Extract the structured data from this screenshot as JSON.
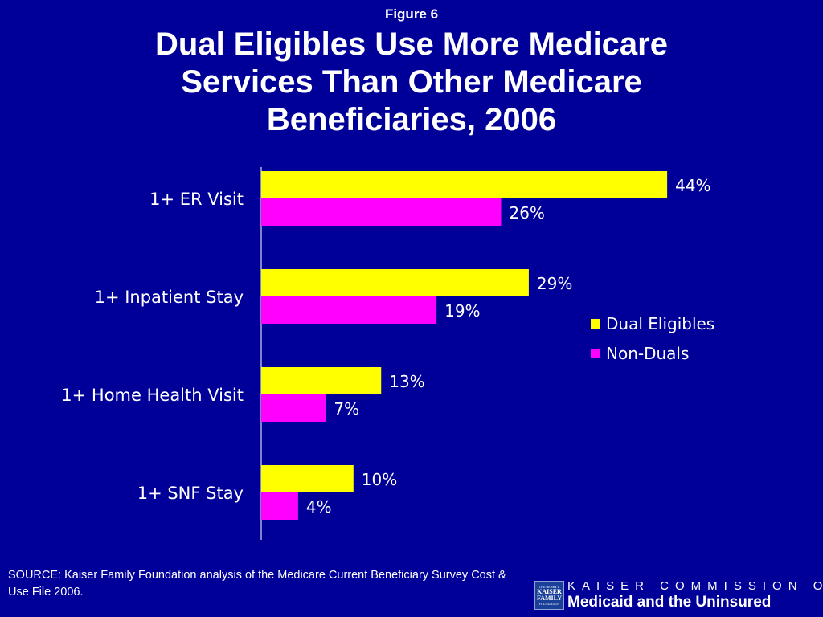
{
  "slide": {
    "figure_label": "Figure 6",
    "title": "Dual Eligibles Use More Medicare Services Than Other Medicare Beneficiaries, 2006",
    "source": "SOURCE: Kaiser Family Foundation analysis of the Medicare Current Beneficiary Survey Cost & Use File 2006.",
    "background_color": "#000099"
  },
  "footer": {
    "logo_text": [
      "THE HENRY J.",
      "KAISER",
      "FAMILY",
      "FOUNDATION"
    ],
    "commission_line": "KAISER COMMISSION ON",
    "medicaid_line": "Medicaid and the Uninsured"
  },
  "chart_data": {
    "type": "bar",
    "orientation": "horizontal",
    "categories": [
      "1+ ER Visit",
      "1+ Inpatient Stay",
      "1+ Home Health Visit",
      "1+ SNF Stay"
    ],
    "series": [
      {
        "name": "Dual Eligibles",
        "values": [
          44,
          29,
          13,
          10
        ],
        "color": "#ffff00"
      },
      {
        "name": "Non-Duals",
        "values": [
          26,
          19,
          7,
          4
        ],
        "color": "#ff00ff"
      }
    ],
    "data_labels": [
      [
        "44%",
        "29%",
        "13%",
        "10%"
      ],
      [
        "26%",
        "19%",
        "7%",
        "4%"
      ]
    ],
    "value_format": "percent",
    "xlim": [
      0,
      50
    ],
    "grid": false,
    "legend_position": "right"
  }
}
